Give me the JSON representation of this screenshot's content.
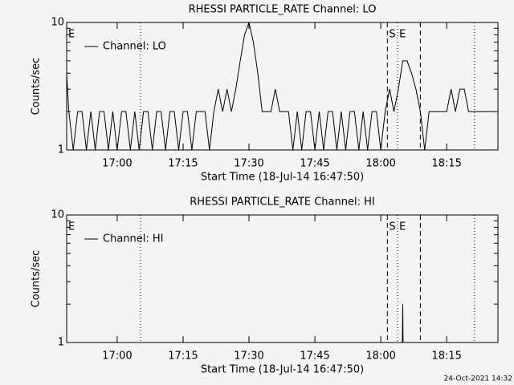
{
  "chart_data": [
    {
      "type": "line",
      "title": "RHESSI PARTICLE_RATE Channel: LO",
      "xlabel": "Start Time (18-Jul-14 16:47:50)",
      "ylabel": "Counts/sec",
      "ylog": true,
      "ylim": [
        1,
        10
      ],
      "yticks": [
        1,
        10
      ],
      "yminor": [
        2,
        3,
        4,
        5,
        6,
        7,
        8,
        9
      ],
      "xlim": [
        "16:48:30",
        "18:26:40"
      ],
      "xticks": [
        "17:00",
        "17:15",
        "17:30",
        "17:45",
        "18:00",
        "18:15"
      ],
      "markers": [
        {
          "x": "17:05:20",
          "style": "dotted"
        },
        {
          "x": "18:01:30",
          "style": "dashed"
        },
        {
          "x": "18:03:50",
          "style": "dotted"
        },
        {
          "x": "18:09:00",
          "style": "dashed"
        },
        {
          "x": "18:21:20",
          "style": "dotted"
        }
      ],
      "annotations": [
        {
          "text": "E",
          "x": "16:48:30"
        },
        {
          "text": "S",
          "x": "18:01:30"
        },
        {
          "text": "E",
          "x": "18:03:50"
        }
      ],
      "legend": "upper left",
      "x": [
        "16:48:30",
        "16:49",
        "16:50",
        "16:51",
        "16:52",
        "16:53",
        "16:54",
        "16:55",
        "16:56",
        "16:57",
        "16:58",
        "16:59",
        "17:00",
        "17:01",
        "17:02",
        "17:03",
        "17:04",
        "17:05",
        "17:06",
        "17:07",
        "17:08",
        "17:09",
        "17:10",
        "17:11",
        "17:12",
        "17:13",
        "17:14",
        "17:15",
        "17:16",
        "17:17",
        "17:18",
        "17:19",
        "17:20",
        "17:21",
        "17:22",
        "17:23",
        "17:24",
        "17:25",
        "17:26",
        "17:27",
        "17:28",
        "17:29",
        "17:30",
        "17:31",
        "17:32",
        "17:33",
        "17:34",
        "17:35",
        "17:36",
        "17:37",
        "17:38",
        "17:39",
        "17:40",
        "17:41",
        "17:42",
        "17:43",
        "17:44",
        "17:45",
        "17:46",
        "17:47",
        "17:48",
        "17:49",
        "17:50",
        "17:51",
        "17:52",
        "17:53",
        "17:54",
        "17:55",
        "17:56",
        "17:57",
        "17:58",
        "17:59",
        "18:00",
        "18:01",
        "18:02",
        "18:03",
        "18:04",
        "18:05",
        "18:06",
        "18:07",
        "18:08",
        "18:09",
        "18:10",
        "18:11",
        "18:12",
        "18:13",
        "18:14",
        "18:15",
        "18:16",
        "18:17",
        "18:18",
        "18:19",
        "18:20",
        "18:21",
        "18:22",
        "18:23",
        "18:24",
        "18:25",
        "18:26"
      ],
      "series": [
        {
          "name": "Channel: LO",
          "color": "#000000",
          "values": [
            4,
            2,
            1,
            2,
            2,
            1,
            2,
            1,
            2,
            2,
            1,
            2,
            1,
            2,
            2,
            1,
            2,
            1,
            2,
            2,
            1,
            2,
            2,
            1,
            2,
            2,
            1,
            2,
            2,
            1,
            2,
            2,
            2,
            1,
            2,
            3,
            2,
            3,
            2,
            3,
            5,
            8,
            10,
            7,
            4,
            2,
            2,
            2,
            3,
            2,
            2,
            2,
            1,
            2,
            1,
            2,
            2,
            1,
            2,
            1,
            2,
            2,
            1,
            2,
            1,
            2,
            2,
            1,
            2,
            1,
            2,
            2,
            1,
            2,
            3,
            2,
            3,
            5,
            5,
            4,
            3,
            2,
            1,
            2,
            2,
            2,
            2,
            2,
            3,
            2,
            3,
            3,
            2,
            2,
            2,
            2,
            2,
            2,
            2
          ]
        }
      ]
    },
    {
      "type": "line",
      "title": "RHESSI PARTICLE_RATE Channel: HI",
      "xlabel": "Start Time (18-Jul-14 16:47:50)",
      "ylabel": "Counts/sec",
      "ylog": true,
      "ylim": [
        1,
        10
      ],
      "yticks": [
        1,
        10
      ],
      "yminor": [
        2,
        3,
        4,
        5,
        6,
        7,
        8,
        9
      ],
      "xlim": [
        "16:48:30",
        "18:26:40"
      ],
      "xticks": [
        "17:00",
        "17:15",
        "17:30",
        "17:45",
        "18:00",
        "18:15"
      ],
      "markers": [
        {
          "x": "17:05:20",
          "style": "dotted"
        },
        {
          "x": "18:01:30",
          "style": "dashed"
        },
        {
          "x": "18:03:50",
          "style": "dotted"
        },
        {
          "x": "18:09:00",
          "style": "dashed"
        },
        {
          "x": "18:21:20",
          "style": "dotted"
        }
      ],
      "annotations": [
        {
          "text": "E",
          "x": "16:48:30"
        },
        {
          "text": "S",
          "x": "18:01:30"
        },
        {
          "text": "E",
          "x": "18:03:50"
        }
      ],
      "legend": "upper left",
      "x": [
        "18:04:55",
        "18:05:00",
        "18:05:05"
      ],
      "series": [
        {
          "name": "Channel: HI",
          "color": "#000000",
          "values": [
            1,
            2,
            1
          ]
        }
      ]
    }
  ],
  "footer": "24-Oct-2021 14:32"
}
